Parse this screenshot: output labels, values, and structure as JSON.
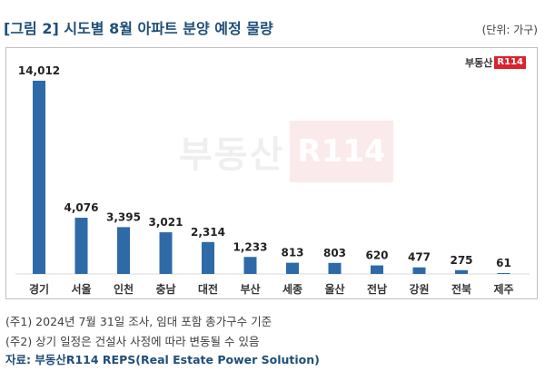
{
  "header": {
    "title": "[그림 2] 시도별 8월 아파트 분양 예정 물량",
    "unit": "(단위: 가구)"
  },
  "logo": {
    "text": "부동산",
    "tag": "R114"
  },
  "notes": {
    "note1": "(주1) 2024년 7월 31일 조사, 임대 포함 총가구수 기준",
    "note2": "(주2) 상기 일정은 건설사 사정에 따라 변동될 수 있음",
    "source": "자료: 부동산R114 REPS(Real Estate Power Solution)"
  },
  "colors": {
    "bar": "#2e6aa8",
    "title": "#1f4e79",
    "logo_red": "#d9232d"
  },
  "chart_data": {
    "type": "bar",
    "categories": [
      "경기",
      "서울",
      "인천",
      "충남",
      "대전",
      "부산",
      "세종",
      "울산",
      "전남",
      "강원",
      "전북",
      "제주"
    ],
    "values": [
      14012,
      4076,
      3395,
      3021,
      2314,
      1233,
      813,
      803,
      620,
      477,
      275,
      61
    ],
    "value_labels": [
      "14,012",
      "4,076",
      "3,395",
      "3,021",
      "2,314",
      "1,233",
      "813",
      "803",
      "620",
      "477",
      "275",
      "61"
    ],
    "ylim": [
      0,
      14012
    ],
    "grid": false,
    "legend": "none"
  }
}
